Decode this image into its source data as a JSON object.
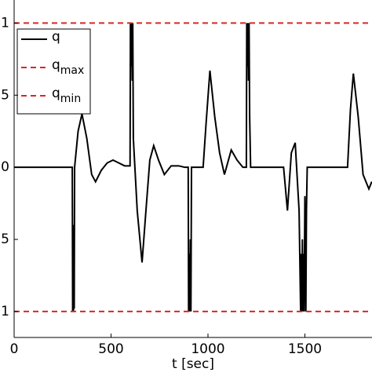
{
  "chart_data": {
    "type": "line",
    "x_label": "t [sec]",
    "xlim": [
      0,
      1845
    ],
    "ylim": [
      -1.18,
      1.16
    ],
    "xticks": [
      0,
      500,
      1000,
      1500
    ],
    "yticks": [
      {
        "value": -1,
        "label": "1"
      },
      {
        "value": -0.5,
        "label": "5"
      },
      0,
      {
        "value": 0.5,
        "label": "5"
      },
      1
    ],
    "legend": "upper left",
    "series": [
      {
        "name": "q",
        "color": "#000000",
        "dash": "solid",
        "x": [
          0,
          300,
          302,
          304,
          306,
          308,
          310,
          312,
          330,
          350,
          375,
          400,
          420,
          450,
          480,
          510,
          540,
          570,
          598,
          600,
          603,
          606,
          609,
          612,
          615,
          635,
          660,
          680,
          700,
          720,
          745,
          775,
          810,
          850,
          880,
          898,
          900,
          903,
          906,
          909,
          912,
          915,
          975,
          990,
          1010,
          1035,
          1060,
          1085,
          1120,
          1150,
          1180,
          1198,
          1200,
          1203,
          1206,
          1209,
          1212,
          1215,
          1220,
          1390,
          1410,
          1430,
          1450,
          1470,
          1478,
          1481,
          1484,
          1487,
          1490,
          1493,
          1496,
          1500,
          1505,
          1508,
          1512,
          1720,
          1735,
          1750,
          1775,
          1800,
          1830,
          1845
        ],
        "values": [
          0,
          0,
          -1,
          -0.5,
          -1,
          -0.4,
          -0.98,
          0,
          0.25,
          0.37,
          0.2,
          -0.05,
          -0.1,
          -0.02,
          0.03,
          0.05,
          0.03,
          0.01,
          0.01,
          1,
          0.7,
          1,
          0.6,
          1,
          0.2,
          -0.3,
          -0.66,
          -0.3,
          0.05,
          0.15,
          0.05,
          -0.05,
          0.01,
          0.01,
          0,
          0,
          -1,
          -0.6,
          -1,
          -0.5,
          -1,
          0,
          0,
          0.3,
          0.67,
          0.35,
          0.1,
          -0.05,
          0.12,
          0.05,
          0,
          0,
          1,
          0.7,
          1,
          0.6,
          1,
          0.35,
          0,
          0,
          -0.3,
          0.1,
          0.17,
          -0.3,
          -1,
          -0.6,
          -1,
          -0.5,
          -1,
          -0.6,
          -1,
          -0.2,
          -1,
          -0.3,
          0,
          0,
          0.4,
          0.65,
          0.35,
          -0.05,
          -0.15,
          -0.1
        ]
      },
      {
        "name": "q",
        "name_sub": "max",
        "color": "#d62728",
        "dash": "dashed",
        "x": [
          0,
          1845
        ],
        "values": [
          1,
          1
        ]
      },
      {
        "name": "q",
        "name_sub": "min",
        "color": "#d62728",
        "dash": "dashed",
        "x": [
          0,
          1845
        ],
        "values": [
          -1,
          -1
        ]
      }
    ]
  }
}
